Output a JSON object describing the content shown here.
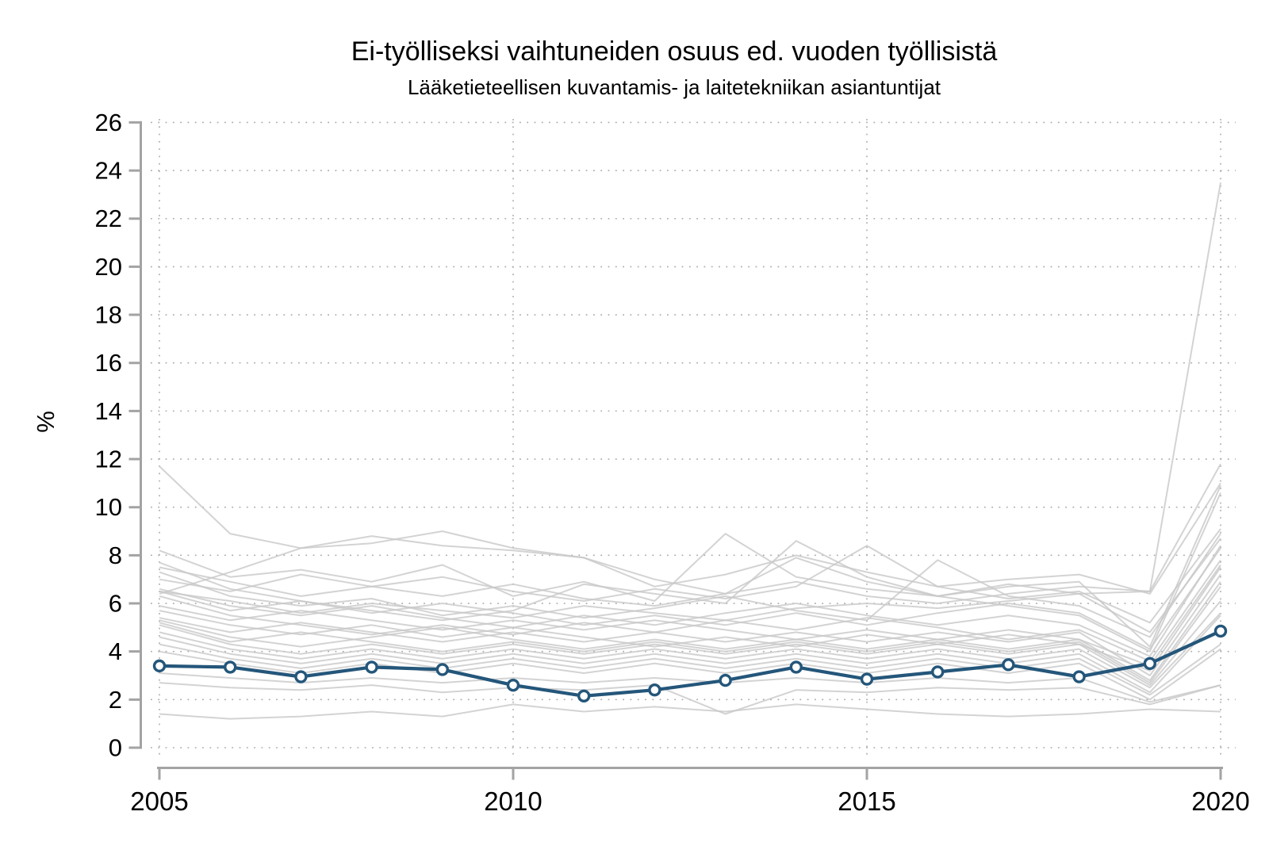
{
  "chart_data": {
    "type": "line",
    "title": "Ei-työlliseksi vaihtuneiden osuus ed. vuoden työllisistä",
    "subtitle": "Lääketieteellisen kuvantamis- ja laitetekniikan asiantuntijat",
    "ylabel": "%",
    "xlim": [
      2005,
      2020
    ],
    "ylim": [
      0,
      26
    ],
    "x": [
      2005,
      2006,
      2007,
      2008,
      2009,
      2010,
      2011,
      2012,
      2013,
      2014,
      2015,
      2016,
      2017,
      2018,
      2019,
      2020
    ],
    "x_ticks": [
      2005,
      2010,
      2015,
      2020
    ],
    "x_tick_labels": [
      "2005",
      "2010",
      "2015",
      "2020"
    ],
    "y_ticks": [
      0,
      2,
      4,
      6,
      8,
      10,
      12,
      14,
      16,
      18,
      20,
      22,
      24,
      26
    ],
    "grid": "dotted horizontal at every y tick and vertical at every x tick",
    "legend_position": "none",
    "highlight_series": {
      "label": "Lääketieteellisen kuvantamis- ja laitetekniikan asiantuntijat",
      "color": "#24567a",
      "marker": "open-circle",
      "values": [
        3.4,
        3.35,
        2.95,
        3.35,
        3.25,
        2.6,
        2.15,
        2.4,
        2.8,
        3.35,
        2.85,
        3.15,
        3.45,
        2.95,
        3.5,
        4.85
      ]
    },
    "background_series_color": "#c8c8c8",
    "background_series": [
      {
        "values": [
          11.7,
          8.9,
          8.3,
          8.5,
          9.0,
          8.3,
          7.9,
          7.0,
          6.4,
          6.9,
          6.3,
          6.0,
          6.4,
          6.7,
          6.5,
          11.8
        ]
      },
      {
        "values": [
          6.5,
          6.1,
          5.6,
          6.0,
          5.7,
          5.4,
          5.9,
          5.6,
          5.3,
          5.8,
          6.0,
          5.8,
          6.1,
          6.4,
          6.5,
          23.5
        ]
      },
      {
        "values": [
          8.2,
          7.1,
          7.4,
          6.9,
          7.6,
          6.3,
          6.9,
          6.1,
          8.9,
          7.1,
          6.6,
          6.3,
          6.7,
          6.9,
          4.2,
          10.9
        ]
      },
      {
        "values": [
          7.7,
          6.6,
          6.1,
          5.7,
          5.3,
          5.7,
          6.8,
          6.4,
          6.0,
          8.6,
          7.1,
          6.3,
          5.9,
          5.5,
          4.0,
          10.6
        ]
      },
      {
        "values": [
          7.5,
          6.9,
          6.3,
          6.7,
          7.1,
          6.5,
          6.1,
          6.6,
          6.2,
          6.7,
          8.4,
          6.7,
          6.2,
          6.5,
          5.2,
          9.1
        ]
      },
      {
        "values": [
          7.3,
          6.3,
          5.9,
          6.2,
          5.5,
          5.9,
          5.4,
          5.8,
          6.3,
          5.7,
          5.3,
          7.8,
          6.3,
          5.9,
          4.6,
          8.9
        ]
      },
      {
        "values": [
          7.0,
          6.5,
          7.2,
          6.7,
          6.3,
          6.8,
          6.2,
          5.9,
          6.4,
          7.9,
          6.9,
          6.3,
          6.8,
          6.4,
          4.8,
          8.7
        ]
      },
      {
        "values": [
          6.6,
          5.9,
          5.5,
          5.9,
          5.4,
          5.0,
          5.5,
          5.1,
          5.6,
          6.0,
          5.5,
          5.1,
          5.5,
          5.1,
          3.8,
          8.4
        ]
      },
      {
        "values": [
          6.5,
          5.7,
          6.1,
          5.6,
          6.0,
          5.6,
          5.1,
          5.5,
          5.1,
          5.6,
          5.1,
          5.6,
          6.0,
          5.6,
          4.1,
          8.3
        ]
      },
      {
        "values": [
          6.3,
          5.5,
          5.1,
          4.7,
          5.1,
          4.7,
          5.2,
          4.8,
          5.3,
          4.9,
          5.4,
          5.0,
          4.5,
          4.9,
          3.6,
          7.8
        ]
      },
      {
        "values": [
          5.9,
          5.3,
          5.7,
          5.3,
          4.9,
          5.3,
          4.9,
          5.3,
          4.9,
          4.5,
          4.9,
          4.5,
          4.9,
          4.5,
          3.4,
          7.6
        ]
      },
      {
        "values": [
          5.7,
          5.1,
          4.7,
          5.1,
          4.6,
          5.0,
          4.6,
          4.2,
          4.6,
          4.2,
          4.7,
          4.3,
          4.7,
          4.3,
          3.2,
          7.5
        ]
      },
      {
        "values": [
          5.4,
          4.8,
          5.2,
          4.8,
          4.4,
          4.8,
          4.4,
          4.8,
          4.4,
          4.8,
          4.4,
          4.8,
          4.4,
          4.8,
          3.0,
          7.2
        ]
      },
      {
        "values": [
          5.3,
          4.6,
          4.2,
          4.6,
          5.0,
          4.5,
          4.1,
          4.5,
          4.1,
          4.5,
          4.1,
          4.5,
          4.1,
          4.5,
          2.8,
          6.9
        ]
      },
      {
        "values": [
          5.2,
          4.4,
          4.8,
          4.4,
          4.0,
          4.4,
          4.0,
          4.4,
          4.0,
          4.4,
          4.0,
          4.4,
          4.0,
          4.4,
          2.7,
          6.7
        ]
      },
      {
        "values": [
          5.1,
          4.3,
          3.9,
          4.3,
          3.9,
          4.3,
          3.9,
          4.3,
          3.9,
          4.3,
          3.9,
          4.3,
          3.9,
          4.3,
          2.6,
          6.1
        ]
      },
      {
        "values": [
          4.8,
          4.1,
          3.7,
          4.1,
          3.7,
          4.1,
          3.7,
          4.1,
          3.7,
          4.1,
          3.7,
          4.1,
          3.7,
          4.1,
          2.5,
          5.6
        ]
      },
      {
        "values": [
          4.6,
          3.9,
          3.5,
          3.9,
          3.5,
          3.9,
          3.5,
          3.9,
          3.5,
          3.9,
          3.5,
          3.9,
          3.5,
          3.9,
          2.3,
          5.5
        ]
      },
      {
        "values": [
          4.3,
          3.7,
          3.3,
          3.7,
          3.3,
          3.7,
          3.3,
          3.7,
          3.3,
          3.7,
          3.3,
          3.7,
          3.3,
          3.7,
          2.2,
          4.3
        ]
      },
      {
        "values": [
          4.0,
          3.5,
          3.1,
          3.5,
          3.1,
          3.5,
          3.1,
          3.5,
          3.1,
          3.5,
          3.1,
          3.5,
          3.1,
          3.5,
          2.0,
          4.1
        ]
      },
      {
        "values": [
          3.1,
          2.9,
          2.7,
          2.9,
          2.7,
          2.9,
          2.7,
          2.9,
          2.7,
          2.9,
          2.7,
          2.9,
          2.7,
          2.9,
          1.9,
          2.6
        ]
      },
      {
        "values": [
          2.7,
          2.5,
          2.4,
          2.6,
          2.3,
          2.5,
          2.4,
          2.6,
          1.4,
          2.4,
          2.3,
          2.5,
          2.4,
          2.5,
          1.8,
          2.6
        ]
      },
      {
        "values": [
          1.4,
          1.2,
          1.3,
          1.5,
          1.3,
          1.8,
          1.5,
          1.7,
          1.5,
          1.8,
          1.6,
          1.4,
          1.3,
          1.4,
          1.6,
          1.5
        ]
      },
      {
        "values": [
          6.4,
          7.3,
          8.3,
          8.8,
          8.4,
          8.2,
          7.9,
          6.7,
          7.2,
          8.0,
          7.3,
          6.7,
          7.0,
          7.2,
          6.4,
          11.0
        ]
      }
    ]
  }
}
